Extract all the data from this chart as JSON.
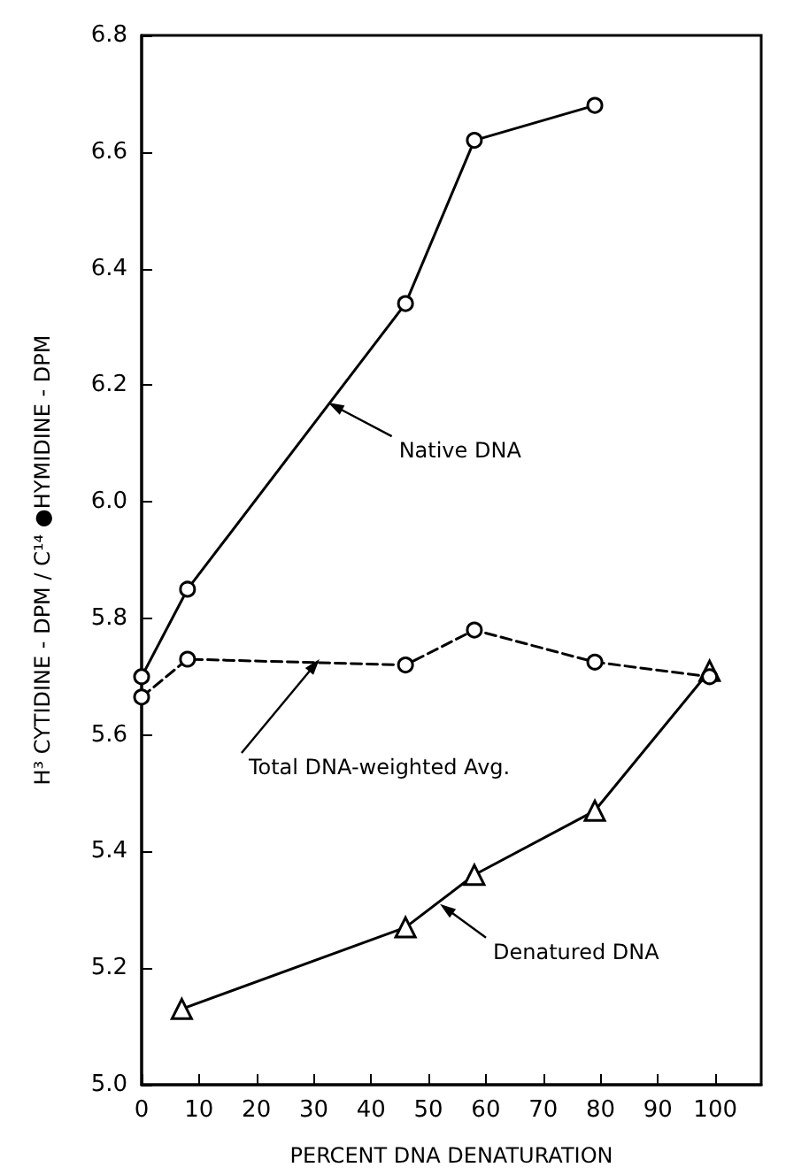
{
  "chart_data": {
    "type": "line",
    "xlabel": "PERCENT DNA DENATURATION",
    "ylabel": "H³ CYTIDINE - DPM / C¹⁴ ●HYMIDINE - DPM",
    "series": [
      {
        "color": "#000000",
        "marker": "circle",
        "line_style": "solid",
        "x": [
          0,
          8,
          46,
          58,
          79
        ],
        "values": [
          5.7,
          5.85,
          6.34,
          6.62,
          6.68
        ]
      },
      {
        "color": "#000000",
        "marker": "circle",
        "line_style": "dashed",
        "x": [
          0,
          8,
          46,
          58,
          79,
          99
        ],
        "values": [
          5.665,
          5.73,
          5.72,
          5.78,
          5.725,
          5.7
        ]
      },
      {
        "color": "#000000",
        "marker": "triangle",
        "line_style": "solid",
        "x": [
          7,
          46,
          58,
          79,
          99
        ],
        "values": [
          5.13,
          5.27,
          5.36,
          5.47,
          5.71
        ]
      }
    ],
    "annotations": [
      {
        "text": "Native DNA",
        "x": 32.5,
        "y": 6.17
      },
      {
        "text": "Total DNA-weighted Avg.",
        "x": 31,
        "y": 5.73
      },
      {
        "text": "Denatured DNA",
        "x": 52,
        "y": 5.31
      }
    ],
    "xlim": [
      0,
      108
    ],
    "xticks": [
      0,
      10,
      20,
      30,
      40,
      50,
      60,
      70,
      80,
      90,
      100
    ],
    "ylim": [
      5.0,
      6.8
    ],
    "yticks": [
      {
        "value": 5.0,
        "label": "5.0"
      },
      {
        "value": 5.2,
        "label": "5.2"
      },
      {
        "value": 5.4,
        "label": "5.4"
      },
      {
        "value": 5.6,
        "label": "5.6"
      },
      {
        "value": 5.8,
        "label": "5.8"
      },
      {
        "value": 6.0,
        "label": "6.0"
      },
      {
        "value": 6.2,
        "label": "6.2"
      },
      {
        "value": 6.4,
        "label": "6.4"
      },
      {
        "value": 6.6,
        "label": "6.6"
      },
      {
        "value": 6.8,
        "label": "6.8"
      }
    ],
    "grid": false
  }
}
